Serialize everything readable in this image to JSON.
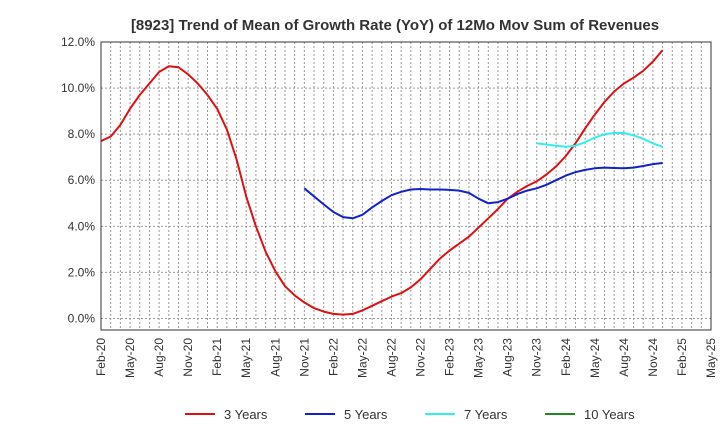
{
  "chart_data": {
    "type": "line",
    "title": "[8923]  Trend of Mean of Growth Rate (YoY) of 12Mo Mov Sum of Revenues",
    "xlabel": "",
    "ylabel": "",
    "ylim": [
      -0.5,
      12.0
    ],
    "yticks": [
      0,
      2,
      4,
      6,
      8,
      10,
      12
    ],
    "ytick_labels": [
      "0.0%",
      "2.0%",
      "4.0%",
      "6.0%",
      "8.0%",
      "10.0%",
      "12.0%"
    ],
    "x_months": [
      "Feb-20",
      "Mar-20",
      "Apr-20",
      "May-20",
      "Jun-20",
      "Jul-20",
      "Aug-20",
      "Sep-20",
      "Oct-20",
      "Nov-20",
      "Dec-20",
      "Jan-21",
      "Feb-21",
      "Mar-21",
      "Apr-21",
      "May-21",
      "Jun-21",
      "Jul-21",
      "Aug-21",
      "Sep-21",
      "Oct-21",
      "Nov-21",
      "Dec-21",
      "Jan-22",
      "Feb-22",
      "Mar-22",
      "Apr-22",
      "May-22",
      "Jun-22",
      "Jul-22",
      "Aug-22",
      "Sep-22",
      "Oct-22",
      "Nov-22",
      "Dec-22",
      "Jan-23",
      "Feb-23",
      "Mar-23",
      "Apr-23",
      "May-23",
      "Jun-23",
      "Jul-23",
      "Aug-23",
      "Sep-23",
      "Oct-23",
      "Nov-23",
      "Dec-23",
      "Jan-24",
      "Feb-24",
      "Mar-24",
      "Apr-24",
      "May-24",
      "Jun-24",
      "Jul-24",
      "Aug-24",
      "Sep-24",
      "Oct-24",
      "Nov-24",
      "Dec-24",
      "Jan-25",
      "Feb-25",
      "Mar-25",
      "Apr-25",
      "May-25"
    ],
    "x_tick_labels": [
      "Feb-20",
      "May-20",
      "Aug-20",
      "Nov-20",
      "Feb-21",
      "May-21",
      "Aug-21",
      "Nov-21",
      "Feb-22",
      "May-22",
      "Aug-22",
      "Nov-22",
      "Feb-23",
      "May-23",
      "Aug-23",
      "Nov-23",
      "Feb-24",
      "May-24",
      "Aug-24",
      "Nov-24",
      "Feb-25",
      "May-25"
    ],
    "grid": true,
    "legend_position": "bottom",
    "series": [
      {
        "name": "3 Years",
        "color": "#dd1111",
        "start_index": 0,
        "values": [
          7.7,
          7.9,
          8.4,
          9.1,
          9.7,
          10.2,
          10.7,
          10.95,
          10.9,
          10.6,
          10.2,
          9.7,
          9.1,
          8.2,
          6.9,
          5.3,
          4.0,
          2.9,
          2.05,
          1.4,
          1.0,
          0.7,
          0.45,
          0.3,
          0.2,
          0.17,
          0.2,
          0.35,
          0.55,
          0.75,
          0.95,
          1.1,
          1.35,
          1.7,
          2.15,
          2.6,
          2.95,
          3.25,
          3.55,
          3.95,
          4.35,
          4.75,
          5.2,
          5.5,
          5.75,
          5.95,
          6.25,
          6.6,
          7.05,
          7.6,
          8.25,
          8.85,
          9.4,
          9.85,
          10.2,
          10.45,
          10.75,
          11.15,
          11.65
        ]
      },
      {
        "name": "5 Years",
        "color": "#1122cc",
        "start_index": 21,
        "values": [
          5.65,
          5.3,
          4.95,
          4.62,
          4.4,
          4.35,
          4.5,
          4.82,
          5.1,
          5.35,
          5.5,
          5.6,
          5.62,
          5.6,
          5.6,
          5.58,
          5.55,
          5.45,
          5.2,
          5.0,
          5.05,
          5.2,
          5.4,
          5.55,
          5.65,
          5.8,
          6.0,
          6.2,
          6.35,
          6.45,
          6.52,
          6.55,
          6.53,
          6.52,
          6.55,
          6.62,
          6.7,
          6.75
        ]
      },
      {
        "name": "7 Years",
        "color": "#33eeee",
        "start_index": 45,
        "values": [
          7.6,
          7.55,
          7.5,
          7.45,
          7.5,
          7.65,
          7.85,
          8.0,
          8.05,
          8.05,
          7.95,
          7.8,
          7.6,
          7.45
        ]
      },
      {
        "name": "10 Years",
        "color": "#228822",
        "start_index": 0,
        "values": []
      }
    ]
  }
}
